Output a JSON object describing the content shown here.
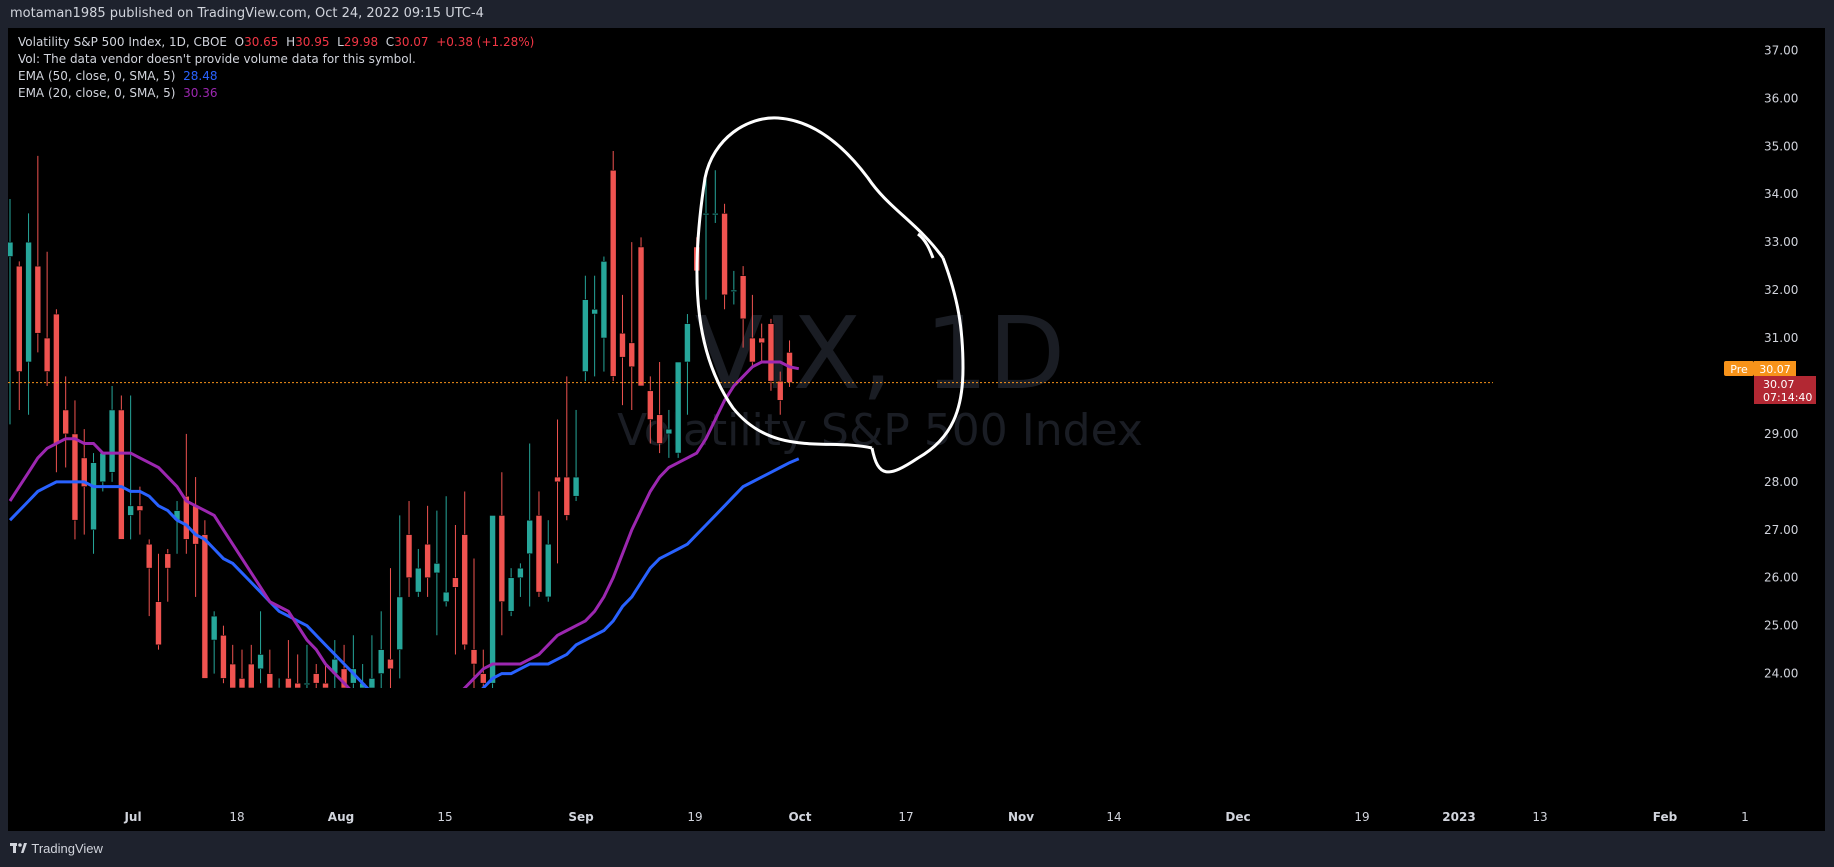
{
  "header": {
    "published_text": "motaman1985 published on TradingView.com, Oct 24, 2022 09:15 UTC-4"
  },
  "legend": {
    "symbol_line_prefix": "Volatility S&P 500 Index, 1D, CBOE",
    "o_label": "O",
    "o_value": "30.65",
    "h_label": "H",
    "h_value": "30.95",
    "l_label": "L",
    "l_value": "29.98",
    "c_label": "C",
    "c_value": "30.07",
    "change": "+0.38 (+1.28%)",
    "vol_text": "Vol: The data vendor doesn't provide volume data for this symbol.",
    "ema50_label": "EMA (50, close, 0, SMA, 5)",
    "ema50_value": "28.48",
    "ema20_label": "EMA (20, close, 0, SMA, 5)",
    "ema20_value": "30.36"
  },
  "watermark": {
    "symbol": "VIX, 1D",
    "name": "Volatility S&P 500 Index"
  },
  "price_labels": {
    "pre_tag": "Pre",
    "pre_value": "30.07",
    "last_value": "30.07",
    "countdown": "07:14:40"
  },
  "footer": {
    "brand": "TradingView"
  },
  "colors": {
    "up": "#26a69a",
    "down": "#ef5350",
    "ema50": "#2962ff",
    "ema20": "#9c27b0",
    "pre": "#f7931a",
    "last": "#b22833"
  },
  "chart_data": {
    "type": "candlestick",
    "y_ticks": [
      "37.00",
      "36.00",
      "35.00",
      "34.00",
      "33.00",
      "32.00",
      "31.00",
      "30.00",
      "29.00",
      "28.00",
      "27.00",
      "26.00",
      "25.00",
      "24.00"
    ],
    "ylim": [
      23.7,
      37.3
    ],
    "x_ticks": [
      "Jul",
      "18",
      "Aug",
      "15",
      "Sep",
      "19",
      "Oct",
      "17",
      "Nov",
      "14",
      "Dec",
      "19",
      "2023",
      "13",
      "Feb",
      "1"
    ],
    "bold_ticks": [
      "Jul",
      "Aug",
      "Sep",
      "Oct",
      "Nov",
      "Dec",
      "2023",
      "Feb"
    ],
    "candles": [
      {
        "o": 32.7,
        "h": 33.9,
        "l": 29.2,
        "c": 33.0
      },
      {
        "o": 32.5,
        "h": 32.6,
        "l": 29.5,
        "c": 30.3
      },
      {
        "o": 30.5,
        "h": 33.6,
        "l": 29.4,
        "c": 33.0
      },
      {
        "o": 32.5,
        "h": 34.8,
        "l": 30.7,
        "c": 31.1
      },
      {
        "o": 31.0,
        "h": 32.8,
        "l": 30.0,
        "c": 30.3
      },
      {
        "o": 31.5,
        "h": 31.6,
        "l": 28.2,
        "c": 28.8
      },
      {
        "o": 29.5,
        "h": 30.2,
        "l": 28.3,
        "c": 29.0
      },
      {
        "o": 29.0,
        "h": 29.7,
        "l": 26.8,
        "c": 27.2
      },
      {
        "o": 28.5,
        "h": 29.1,
        "l": 26.9,
        "c": 27.9
      },
      {
        "o": 27.0,
        "h": 28.6,
        "l": 26.5,
        "c": 28.4
      },
      {
        "o": 28.0,
        "h": 28.5,
        "l": 27.8,
        "c": 28.6
      },
      {
        "o": 28.2,
        "h": 30.0,
        "l": 28.0,
        "c": 29.5
      },
      {
        "o": 29.5,
        "h": 29.8,
        "l": 26.8,
        "c": 26.8
      },
      {
        "o": 27.3,
        "h": 29.8,
        "l": 26.8,
        "c": 27.5
      },
      {
        "o": 27.5,
        "h": 27.9,
        "l": 26.9,
        "c": 27.4
      },
      {
        "o": 26.7,
        "h": 26.8,
        "l": 25.2,
        "c": 26.2
      },
      {
        "o": 25.5,
        "h": 26.5,
        "l": 24.5,
        "c": 24.6
      },
      {
        "o": 26.5,
        "h": 26.6,
        "l": 25.5,
        "c": 26.2
      },
      {
        "o": 27.2,
        "h": 27.6,
        "l": 26.5,
        "c": 27.4
      },
      {
        "o": 27.7,
        "h": 29.0,
        "l": 26.5,
        "c": 26.8
      },
      {
        "o": 27.5,
        "h": 28.1,
        "l": 25.6,
        "c": 26.7
      },
      {
        "o": 26.9,
        "h": 27.2,
        "l": 23.9,
        "c": 23.9
      },
      {
        "o": 24.7,
        "h": 25.3,
        "l": 24.0,
        "c": 25.2
      },
      {
        "o": 24.8,
        "h": 25.0,
        "l": 23.8,
        "c": 23.9
      },
      {
        "o": 24.2,
        "h": 24.6,
        "l": 23.7,
        "c": 23.7
      },
      {
        "o": 23.9,
        "h": 24.5,
        "l": 23.7,
        "c": 23.7
      },
      {
        "o": 24.2,
        "h": 24.6,
        "l": 23.7,
        "c": 23.7
      },
      {
        "o": 24.1,
        "h": 25.3,
        "l": 23.8,
        "c": 24.4
      },
      {
        "o": 24.0,
        "h": 24.5,
        "l": 23.7,
        "c": 23.7
      },
      {
        "o": 23.7,
        "h": 23.9,
        "l": 23.7,
        "c": 23.7
      },
      {
        "o": 23.9,
        "h": 24.7,
        "l": 23.7,
        "c": 23.7
      },
      {
        "o": 23.8,
        "h": 24.4,
        "l": 23.7,
        "c": 23.7
      },
      {
        "o": 23.8,
        "h": 24.6,
        "l": 23.7,
        "c": 23.8
      },
      {
        "o": 24.0,
        "h": 24.2,
        "l": 23.7,
        "c": 23.8
      },
      {
        "o": 23.8,
        "h": 24.2,
        "l": 23.7,
        "c": 23.7
      },
      {
        "o": 24.0,
        "h": 24.7,
        "l": 23.7,
        "c": 24.3
      },
      {
        "o": 24.1,
        "h": 24.6,
        "l": 23.7,
        "c": 23.7
      },
      {
        "o": 23.8,
        "h": 24.8,
        "l": 23.7,
        "c": 24.1
      },
      {
        "o": 23.7,
        "h": 24.2,
        "l": 23.7,
        "c": 23.8
      },
      {
        "o": 23.7,
        "h": 24.8,
        "l": 23.7,
        "c": 23.9
      },
      {
        "o": 24.0,
        "h": 25.3,
        "l": 23.7,
        "c": 24.5
      },
      {
        "o": 24.3,
        "h": 26.2,
        "l": 23.7,
        "c": 24.1
      },
      {
        "o": 24.5,
        "h": 27.3,
        "l": 23.9,
        "c": 25.6
      },
      {
        "o": 26.9,
        "h": 27.6,
        "l": 25.6,
        "c": 26.0
      },
      {
        "o": 25.7,
        "h": 26.6,
        "l": 25.6,
        "c": 26.2
      },
      {
        "o": 26.7,
        "h": 27.5,
        "l": 25.6,
        "c": 26.0
      },
      {
        "o": 26.1,
        "h": 27.4,
        "l": 24.8,
        "c": 26.3
      },
      {
        "o": 25.5,
        "h": 27.7,
        "l": 25.4,
        "c": 25.7
      },
      {
        "o": 26.0,
        "h": 27.1,
        "l": 24.4,
        "c": 25.8
      },
      {
        "o": 26.9,
        "h": 27.8,
        "l": 24.5,
        "c": 24.6
      },
      {
        "o": 24.5,
        "h": 26.4,
        "l": 23.7,
        "c": 24.2
      },
      {
        "o": 24.0,
        "h": 24.5,
        "l": 23.7,
        "c": 23.8
      },
      {
        "o": 23.8,
        "h": 27.2,
        "l": 23.7,
        "c": 27.3
      },
      {
        "o": 27.3,
        "h": 28.2,
        "l": 24.8,
        "c": 25.5
      },
      {
        "o": 25.3,
        "h": 26.2,
        "l": 25.2,
        "c": 26.0
      },
      {
        "o": 26.0,
        "h": 26.3,
        "l": 25.6,
        "c": 26.2
      },
      {
        "o": 26.5,
        "h": 28.8,
        "l": 25.4,
        "c": 27.2
      },
      {
        "o": 27.3,
        "h": 27.8,
        "l": 25.6,
        "c": 25.7
      },
      {
        "o": 25.6,
        "h": 27.2,
        "l": 25.5,
        "c": 26.7
      },
      {
        "o": 28.1,
        "h": 29.3,
        "l": 26.3,
        "c": 28.0
      },
      {
        "o": 28.1,
        "h": 30.2,
        "l": 27.2,
        "c": 27.3
      },
      {
        "o": 27.7,
        "h": 29.5,
        "l": 27.6,
        "c": 28.1
      },
      {
        "o": 30.3,
        "h": 32.3,
        "l": 30.1,
        "c": 31.8
      },
      {
        "o": 31.5,
        "h": 32.3,
        "l": 30.2,
        "c": 31.6
      },
      {
        "o": 31.0,
        "h": 32.7,
        "l": 30.3,
        "c": 32.6
      },
      {
        "o": 34.5,
        "h": 34.9,
        "l": 30.1,
        "c": 30.2
      },
      {
        "o": 31.1,
        "h": 31.9,
        "l": 29.6,
        "c": 30.6
      },
      {
        "o": 30.9,
        "h": 33.0,
        "l": 29.5,
        "c": 30.4
      },
      {
        "o": 32.9,
        "h": 33.1,
        "l": 30.0,
        "c": 30.0
      },
      {
        "o": 29.9,
        "h": 30.2,
        "l": 28.8,
        "c": 29.3
      },
      {
        "o": 29.4,
        "h": 30.5,
        "l": 28.6,
        "c": 28.8
      },
      {
        "o": 29.0,
        "h": 29.5,
        "l": 28.5,
        "c": 29.1
      },
      {
        "o": 28.6,
        "h": 30.5,
        "l": 28.5,
        "c": 30.5
      },
      {
        "o": 30.5,
        "h": 31.5,
        "l": 29.4,
        "c": 31.3
      },
      {
        "o": 32.9,
        "h": 33.1,
        "l": 32.3,
        "c": 32.4
      },
      {
        "o": 33.6,
        "h": 34.4,
        "l": 31.8,
        "c": 33.6
      },
      {
        "o": 33.6,
        "h": 34.5,
        "l": 33.4,
        "c": 33.6
      },
      {
        "o": 33.6,
        "h": 33.8,
        "l": 31.6,
        "c": 31.9
      },
      {
        "o": 32.0,
        "h": 32.4,
        "l": 31.7,
        "c": 32.0
      },
      {
        "o": 32.3,
        "h": 32.5,
        "l": 30.8,
        "c": 31.4
      },
      {
        "o": 31.0,
        "h": 31.9,
        "l": 30.4,
        "c": 30.5
      },
      {
        "o": 31.0,
        "h": 31.3,
        "l": 30.5,
        "c": 30.9
      },
      {
        "o": 31.3,
        "h": 31.4,
        "l": 29.9,
        "c": 30.1
      },
      {
        "o": 30.1,
        "h": 30.3,
        "l": 29.4,
        "c": 29.7
      },
      {
        "o": 30.7,
        "h": 30.95,
        "l": 29.98,
        "c": 30.07
      }
    ],
    "ema20": [
      27.6,
      27.9,
      28.2,
      28.5,
      28.7,
      28.8,
      28.9,
      28.9,
      28.8,
      28.8,
      28.6,
      28.6,
      28.6,
      28.6,
      28.5,
      28.4,
      28.3,
      28.1,
      27.9,
      27.6,
      27.5,
      27.4,
      27.3,
      27.0,
      26.7,
      26.4,
      26.1,
      25.8,
      25.5,
      25.4,
      25.3,
      25.0,
      24.7,
      24.5,
      24.2,
      24.0,
      23.8,
      23.6,
      23.4,
      23.2,
      23.0,
      22.8,
      22.7,
      22.6,
      22.6,
      22.7,
      22.9,
      23.2,
      23.5,
      23.7,
      23.9,
      24.1,
      24.2,
      24.2,
      24.2,
      24.2,
      24.3,
      24.4,
      24.6,
      24.8,
      24.9,
      25.0,
      25.1,
      25.3,
      25.6,
      26.0,
      26.5,
      27.0,
      27.4,
      27.8,
      28.1,
      28.3,
      28.4,
      28.5,
      28.6,
      28.9,
      29.3,
      29.7,
      30.0,
      30.2,
      30.4,
      30.5,
      30.5,
      30.5,
      30.4,
      30.36
    ],
    "ema50": [
      27.2,
      27.4,
      27.6,
      27.8,
      27.9,
      28.0,
      28.0,
      28.0,
      28.0,
      27.9,
      27.9,
      27.9,
      27.9,
      27.8,
      27.8,
      27.7,
      27.5,
      27.4,
      27.2,
      27.1,
      26.9,
      26.8,
      26.6,
      26.4,
      26.3,
      26.1,
      25.9,
      25.7,
      25.5,
      25.3,
      25.2,
      25.1,
      25.0,
      24.8,
      24.6,
      24.4,
      24.2,
      24.0,
      23.8,
      23.6,
      23.4,
      23.2,
      23.0,
      22.9,
      22.8,
      22.8,
      22.8,
      22.9,
      23.0,
      23.2,
      23.5,
      23.7,
      23.9,
      24.0,
      24.0,
      24.1,
      24.2,
      24.2,
      24.2,
      24.3,
      24.4,
      24.6,
      24.7,
      24.8,
      24.9,
      25.1,
      25.4,
      25.6,
      25.9,
      26.2,
      26.4,
      26.5,
      26.6,
      26.7,
      26.9,
      27.1,
      27.3,
      27.5,
      27.7,
      27.9,
      28.0,
      28.1,
      28.2,
      28.3,
      28.4,
      28.48
    ],
    "ema_start_index": -1,
    "last_price": 30.07
  }
}
